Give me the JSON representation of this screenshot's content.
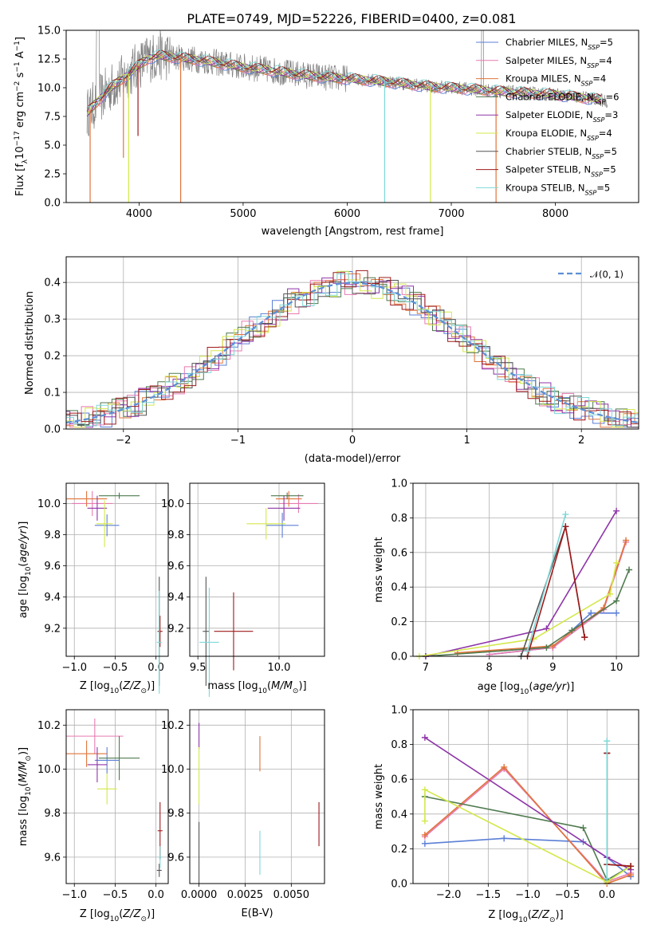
{
  "figure": {
    "title": "PLATE=0749, MJD=52226, FIBERID=0400, z=0.081"
  },
  "colors": {
    "Chabrier MILES": "#5b7fd6",
    "Salpeter MILES": "#e87ab0",
    "Kroupa MILES": "#e0743a",
    "Chabrier ELODIE": "#4f7a4f",
    "Salpeter ELODIE": "#8e35a8",
    "Kroupa ELODIE": "#d4e84c",
    "Chabrier STELIB": "#555555",
    "Salpeter STELIB": "#9e1a1a",
    "Kroupa STELIB": "#7fd8d8",
    "gaussian": "#5b8fd6"
  },
  "chart_data": [
    {
      "id": "spectrum",
      "type": "line",
      "xlabel": "wavelength [Angstrom, rest frame]",
      "ylabel": "Flux [f_λ10^-17 erg cm^-2 s^-1 A^-1]",
      "xlim": [
        3300,
        8800
      ],
      "ylim": [
        0,
        15
      ],
      "xticks": [
        4000,
        5000,
        6000,
        7000,
        8000
      ],
      "yticks": [
        0.0,
        2.5,
        5.0,
        7.5,
        10.0,
        12.5,
        15.0
      ],
      "grid": false,
      "legend_position": "top-right",
      "legend": [
        {
          "model": "Chabrier MILES",
          "label": "Chabrier MILES, N",
          "sub": "SSP",
          "n": "=5"
        },
        {
          "model": "Salpeter MILES",
          "label": "Salpeter MILES, N",
          "sub": "SSP",
          "n": "=4"
        },
        {
          "model": "Kroupa MILES",
          "label": "Kroupa MILES, N",
          "sub": "SSP",
          "n": "=4"
        },
        {
          "model": "Chabrier ELODIE",
          "label": "Chabrier ELODIE, N",
          "sub": "SSP",
          "n": "=6"
        },
        {
          "model": "Salpeter ELODIE",
          "label": "Salpeter ELODIE, N",
          "sub": "SSP",
          "n": "=3"
        },
        {
          "model": "Kroupa ELODIE",
          "label": "Kroupa ELODIE, N",
          "sub": "SSP",
          "n": "=4"
        },
        {
          "model": "Chabrier STELIB",
          "label": "Chabrier STELIB, N",
          "sub": "SSP",
          "n": "=5"
        },
        {
          "model": "Salpeter STELIB",
          "label": "Salpeter STELIB, N",
          "sub": "SSP",
          "n": "=5"
        },
        {
          "model": "Kroupa STELIB",
          "label": "Kroupa STELIB, N",
          "sub": "SSP",
          "n": "=5"
        }
      ],
      "continuum": [
        [
          3500,
          7.8
        ],
        [
          3600,
          8.8
        ],
        [
          3700,
          9.8
        ],
        [
          3800,
          10.5
        ],
        [
          3900,
          11.2
        ],
        [
          4000,
          12.0
        ],
        [
          4100,
          12.6
        ],
        [
          4200,
          12.8
        ],
        [
          4400,
          12.6
        ],
        [
          4600,
          12.4
        ],
        [
          4800,
          12.1
        ],
        [
          5000,
          11.8
        ],
        [
          5200,
          11.6
        ],
        [
          5500,
          11.2
        ],
        [
          5800,
          10.9
        ],
        [
          6000,
          10.8
        ],
        [
          6300,
          10.6
        ],
        [
          6600,
          10.3
        ],
        [
          6800,
          10.1
        ],
        [
          7000,
          10.0
        ],
        [
          7300,
          9.8
        ],
        [
          7600,
          9.6
        ],
        [
          8000,
          9.4
        ],
        [
          8400,
          9.0
        ],
        [
          8500,
          8.8
        ]
      ],
      "model_dips": [
        {
          "model": "Kroupa MILES",
          "x": 3530,
          "y": 0.0
        },
        {
          "model": "Kroupa MILES",
          "x": 3850,
          "y": 3.9
        },
        {
          "model": "Salpeter STELIB",
          "x": 3990,
          "y": 5.8
        },
        {
          "model": "Kroupa MILES",
          "x": 4400,
          "y": 0.0
        },
        {
          "model": "Kroupa STELIB",
          "x": 6360,
          "y": 0.0
        },
        {
          "model": "Kroupa ELODIE",
          "x": 3900,
          "y": 0.0
        },
        {
          "model": "Kroupa ELODIE",
          "x": 6800,
          "y": 0.0
        },
        {
          "model": "Kroupa MILES",
          "x": 7430,
          "y": 0.0
        }
      ]
    },
    {
      "id": "residuals",
      "type": "histogram",
      "xlabel": "(data-model)/error",
      "ylabel": "Normed distribution",
      "xlim": [
        -2.5,
        2.5
      ],
      "ylim": [
        0,
        0.47
      ],
      "xticks": [
        -2,
        -1,
        0,
        1,
        2
      ],
      "yticks": [
        0.0,
        0.1,
        0.2,
        0.3,
        0.4
      ],
      "grid": true,
      "legend_position": "top-right",
      "gaussian_label": "𝒩(0, 1)",
      "bin_width": 0.1
    },
    {
      "id": "age-vs-Z",
      "type": "errorbar",
      "xlabel": "Z [log10(Z/Z☉)]",
      "ylabel": "age  [log10(age/yr)]",
      "xlim": [
        -1.1,
        0.15
      ],
      "ylim": [
        9.02,
        10.13
      ],
      "xticks": [
        -1.0,
        -0.5,
        0.0
      ],
      "yticks": [
        9.2,
        9.4,
        9.6,
        9.8,
        10.0
      ],
      "points": [
        {
          "model": "Chabrier MILES",
          "x": -0.6,
          "xerr": 0.15,
          "y": 9.86,
          "yerr": 0.07
        },
        {
          "model": "Salpeter MILES",
          "x": -0.78,
          "xerr": 0.25,
          "y": 10.0,
          "yerr": 0.08
        },
        {
          "model": "Kroupa MILES",
          "x": -0.85,
          "xerr": 0.25,
          "y": 10.03,
          "yerr": 0.05
        },
        {
          "model": "Chabrier ELODIE",
          "x": -0.45,
          "xerr": 0.25,
          "y": 10.05,
          "yerr": 0.02
        },
        {
          "model": "Salpeter ELODIE",
          "x": -0.72,
          "xerr": 0.12,
          "y": 9.97,
          "yerr": 0.08
        },
        {
          "model": "Kroupa ELODIE",
          "x": -0.63,
          "xerr": 0.1,
          "y": 9.87,
          "yerr": 0.15
        },
        {
          "model": "Chabrier STELIB",
          "x": 0.04,
          "xerr": 0.02,
          "y": 9.18,
          "yerr": 0.35
        },
        {
          "model": "Salpeter STELIB",
          "x": 0.05,
          "xerr": 0.03,
          "y": 9.18,
          "yerr": 0.1
        },
        {
          "model": "Kroupa STELIB",
          "x": 0.04,
          "xerr": 0.03,
          "y": 9.11,
          "yerr": 0.33
        }
      ]
    },
    {
      "id": "age-vs-mass",
      "type": "errorbar",
      "xlabel": "mass [log10(M/M☉)]",
      "ylabel": "",
      "xlim": [
        9.45,
        10.28
      ],
      "ylim": [
        9.02,
        10.13
      ],
      "xticks": [
        9.5,
        10.0
      ],
      "yticks": [
        9.2,
        9.4,
        9.6,
        9.8,
        10.0
      ],
      "points": [
        {
          "model": "Chabrier MILES",
          "x": 10.02,
          "xerr": 0.1,
          "y": 9.86,
          "yerr": 0.08
        },
        {
          "model": "Salpeter MILES",
          "x": 10.12,
          "xerr": 0.12,
          "y": 10.0,
          "yerr": 0.06
        },
        {
          "model": "Kroupa MILES",
          "x": 10.06,
          "xerr": 0.08,
          "y": 10.03,
          "yerr": 0.05
        },
        {
          "model": "Chabrier ELODIE",
          "x": 10.05,
          "xerr": 0.1,
          "y": 10.05,
          "yerr": 0.02
        },
        {
          "model": "Salpeter ELODIE",
          "x": 10.03,
          "xerr": 0.1,
          "y": 9.97,
          "yerr": 0.08
        },
        {
          "model": "Kroupa ELODIE",
          "x": 9.92,
          "xerr": 0.12,
          "y": 9.87,
          "yerr": 0.1
        },
        {
          "model": "Chabrier STELIB",
          "x": 9.55,
          "xerr": 0.02,
          "y": 9.18,
          "yerr": 0.35
        },
        {
          "model": "Salpeter STELIB",
          "x": 9.72,
          "xerr": 0.12,
          "y": 9.18,
          "yerr": 0.25
        },
        {
          "model": "Kroupa STELIB",
          "x": 9.57,
          "xerr": 0.06,
          "y": 9.11,
          "yerr": 0.35
        }
      ]
    },
    {
      "id": "weight-vs-age",
      "type": "line",
      "xlabel": "age  [log10(age/yr)]",
      "ylabel": "mass weight",
      "xlim": [
        6.8,
        10.35
      ],
      "ylim": [
        0,
        1.0
      ],
      "xticks": [
        7,
        8,
        9,
        10
      ],
      "yticks": [
        0.0,
        0.2,
        0.4,
        0.6,
        0.8,
        1.0
      ],
      "series": [
        {
          "model": "Chabrier MILES",
          "x": [
            8.0,
            9.0,
            9.6,
            10.0
          ],
          "y": [
            0.01,
            0.05,
            0.25,
            0.25
          ]
        },
        {
          "model": "Salpeter MILES",
          "x": [
            8.0,
            9.0,
            9.8,
            10.15
          ],
          "y": [
            0.01,
            0.05,
            0.27,
            0.66
          ]
        },
        {
          "model": "Kroupa MILES",
          "x": [
            7.5,
            9.0,
            9.8,
            10.15
          ],
          "y": [
            0.02,
            0.06,
            0.28,
            0.67
          ]
        },
        {
          "model": "Chabrier ELODIE",
          "x": [
            7.0,
            8.9,
            9.3,
            10.0,
            10.2
          ],
          "y": [
            0.0,
            0.05,
            0.15,
            0.32,
            0.5
          ]
        },
        {
          "model": "Salpeter ELODIE",
          "x": [
            7.0,
            8.9,
            10.0
          ],
          "y": [
            0.0,
            0.16,
            0.84
          ]
        },
        {
          "model": "Kroupa ELODIE",
          "x": [
            6.9,
            8.7,
            9.9,
            10.0
          ],
          "y": [
            0.0,
            0.1,
            0.36,
            0.54
          ]
        },
        {
          "model": "Chabrier STELIB",
          "x": [
            8.5,
            9.2,
            9.5
          ],
          "y": [
            0.0,
            0.75,
            0.11
          ]
        },
        {
          "model": "Salpeter STELIB",
          "x": [
            8.6,
            9.2,
            9.5
          ],
          "y": [
            0.0,
            0.75,
            0.11
          ]
        },
        {
          "model": "Kroupa STELIB",
          "x": [
            8.6,
            9.2
          ],
          "y": [
            0.03,
            0.82
          ]
        }
      ]
    },
    {
      "id": "mass-vs-Z",
      "type": "errorbar",
      "xlabel": "Z [log10(Z/Z☉)]",
      "ylabel": "mass [log10(M/M☉)]",
      "xlim": [
        -1.1,
        0.15
      ],
      "ylim": [
        9.48,
        10.27
      ],
      "xticks": [
        -1.0,
        -0.5,
        0.0
      ],
      "yticks": [
        9.6,
        9.8,
        10.0,
        10.2
      ],
      "points": [
        {
          "model": "Chabrier MILES",
          "x": -0.6,
          "xerr": 0.15,
          "y": 10.04,
          "yerr": 0.06
        },
        {
          "model": "Salpeter MILES",
          "x": -0.75,
          "xerr": 0.35,
          "y": 10.15,
          "yerr": 0.08
        },
        {
          "model": "Kroupa MILES",
          "x": -0.85,
          "xerr": 0.25,
          "y": 10.07,
          "yerr": 0.06
        },
        {
          "model": "Chabrier ELODIE",
          "x": -0.45,
          "xerr": 0.25,
          "y": 10.05,
          "yerr": 0.1
        },
        {
          "model": "Salpeter ELODIE",
          "x": -0.72,
          "xerr": 0.12,
          "y": 10.02,
          "yerr": 0.08
        },
        {
          "model": "Kroupa ELODIE",
          "x": -0.6,
          "xerr": 0.12,
          "y": 9.91,
          "yerr": 0.07
        },
        {
          "model": "Chabrier STELIB",
          "x": 0.04,
          "xerr": 0.03,
          "y": 9.54,
          "yerr": 0.03
        },
        {
          "model": "Salpeter STELIB",
          "x": 0.05,
          "xerr": 0.03,
          "y": 9.72,
          "yerr": 0.13
        },
        {
          "model": "Kroupa STELIB",
          "x": 0.05,
          "xerr": 0.02,
          "y": 9.6,
          "yerr": 0.05
        }
      ]
    },
    {
      "id": "mass-vs-EBV",
      "type": "errorbar",
      "xlabel": "E(B-V)",
      "ylabel": "",
      "xlim": [
        -0.0005,
        0.0068
      ],
      "ylim": [
        9.48,
        10.27
      ],
      "xticks": [
        0.0,
        0.0025,
        0.005
      ],
      "xtick_labels": [
        "0.0000",
        "0.0025",
        "0.0050"
      ],
      "yticks": [
        9.6,
        9.8,
        10.0,
        10.2
      ],
      "points": [
        {
          "model": "Salpeter ELODIE",
          "x": 0.0,
          "xerr": 0,
          "y": 10.15,
          "yerr": 0.06
        },
        {
          "model": "Kroupa ELODIE",
          "x": 0.0,
          "xerr": 0,
          "y": 9.97,
          "yerr": 0.13
        },
        {
          "model": "Chabrier STELIB",
          "x": 0.0,
          "xerr": 0,
          "y": 9.62,
          "yerr": 0.14
        },
        {
          "model": "Kroupa MILES",
          "x": 0.0033,
          "xerr": 0,
          "y": 10.07,
          "yerr": 0.08
        },
        {
          "model": "Kroupa STELIB",
          "x": 0.0033,
          "xerr": 0,
          "y": 9.62,
          "yerr": 0.1
        },
        {
          "model": "Salpeter STELIB",
          "x": 0.0065,
          "xerr": 0,
          "y": 9.75,
          "yerr": 0.1
        }
      ]
    },
    {
      "id": "weight-vs-Z",
      "type": "line",
      "xlabel": "Z [log10(Z/Z☉)]",
      "ylabel": "mass weight",
      "xlim": [
        -2.45,
        0.4
      ],
      "ylim": [
        0,
        1.0
      ],
      "xticks": [
        -2.0,
        -1.5,
        -1.0,
        -0.5,
        0.0
      ],
      "yticks": [
        0.0,
        0.2,
        0.4,
        0.6,
        0.8,
        1.0
      ],
      "series": [
        {
          "model": "Chabrier MILES",
          "x": [
            -2.3,
            -1.3,
            -0.3,
            0.0,
            0.3
          ],
          "y": [
            0.23,
            0.26,
            0.24,
            0.15,
            0.04
          ]
        },
        {
          "model": "Salpeter MILES",
          "x": [
            -2.3,
            -1.3,
            0.0,
            0.3
          ],
          "y": [
            0.27,
            0.66,
            0.01,
            0.06
          ]
        },
        {
          "model": "Kroupa MILES",
          "x": [
            -2.3,
            -1.3,
            0.0,
            0.3
          ],
          "y": [
            0.28,
            0.67,
            0.0,
            0.05
          ]
        },
        {
          "model": "Chabrier ELODIE",
          "x": [
            -2.3,
            -0.3,
            0.0,
            0.3
          ],
          "y": [
            0.5,
            0.32,
            0.02,
            0.1
          ]
        },
        {
          "model": "Salpeter ELODIE",
          "x": [
            -2.3,
            0.0,
            0.3
          ],
          "y": [
            0.84,
            0.15,
            0.08
          ]
        },
        {
          "model": "Kroupa ELODIE",
          "x": [
            -2.3,
            -2.3,
            0.0,
            0.3
          ],
          "y": [
            0.36,
            0.54,
            0.01,
            0.1
          ]
        },
        {
          "model": "Chabrier STELIB",
          "x": [
            0.0,
            0.0,
            0.3
          ],
          "y": [
            0.75,
            0.11,
            0.1
          ]
        },
        {
          "model": "Salpeter STELIB",
          "x": [
            0.0,
            0.0,
            0.3
          ],
          "y": [
            0.75,
            0.11,
            0.1
          ]
        },
        {
          "model": "Kroupa STELIB",
          "x": [
            0.0,
            0.0
          ],
          "y": [
            0.82,
            0.03
          ]
        }
      ]
    }
  ]
}
